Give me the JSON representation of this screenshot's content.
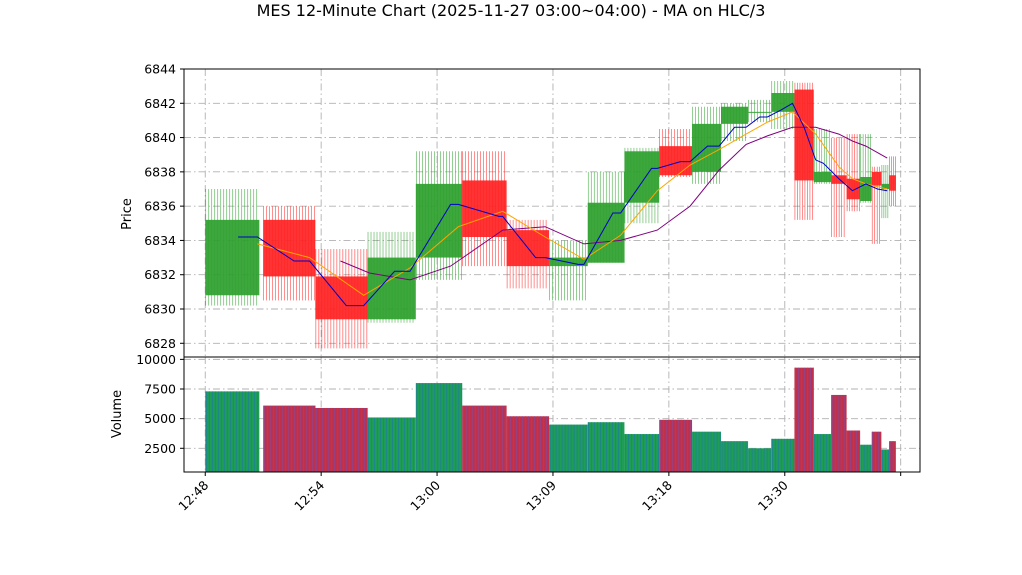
{
  "chart_data": {
    "type": "candlestick",
    "title": "MES 12-Minute Chart (2025-11-27 03:00~04:00) - MA on HLC/3",
    "price_panel": {
      "ylabel": "Price",
      "ylim": [
        6827.2,
        6844
      ],
      "yticks": [
        "6828",
        "6830",
        "6832",
        "6834",
        "6836",
        "6838",
        "6840",
        "6842",
        "6844"
      ]
    },
    "volume_panel": {
      "ylabel": "Volume",
      "ylim": [
        500,
        10200
      ],
      "yticks": [
        "2500",
        "5000",
        "7500",
        "10000"
      ]
    },
    "xticks": [
      "12:48",
      "12:54",
      "13:00",
      "13:09",
      "13:18",
      "13:30"
    ],
    "grid": true,
    "colors": {
      "up": "#2ca02c",
      "down": "#ff2222",
      "ma_fast": "#0000cc",
      "ma_mid": "#ffa500",
      "ma_slow": "#800080"
    },
    "bars": [
      {
        "t": 0.0,
        "w": 2.8,
        "open": 6830.8,
        "high": 6837.0,
        "low": 6830.2,
        "close": 6835.2,
        "volume": 7300
      },
      {
        "t": 3.0,
        "w": 2.7,
        "open": 6835.2,
        "high": 6836.0,
        "low": 6830.5,
        "close": 6831.9,
        "volume": 6100
      },
      {
        "t": 5.7,
        "w": 2.7,
        "open": 6831.9,
        "high": 6833.5,
        "low": 6827.7,
        "close": 6829.4,
        "volume": 5900
      },
      {
        "t": 8.4,
        "w": 2.5,
        "open": 6829.4,
        "high": 6834.5,
        "low": 6829.2,
        "close": 6833.0,
        "volume": 5100
      },
      {
        "t": 10.9,
        "w": 2.4,
        "open": 6833.0,
        "high": 6839.2,
        "low": 6831.7,
        "close": 6837.3,
        "volume": 8000
      },
      {
        "t": 13.3,
        "w": 2.3,
        "open": 6837.5,
        "high": 6839.2,
        "low": 6832.5,
        "close": 6834.2,
        "volume": 6100
      },
      {
        "t": 15.6,
        "w": 2.2,
        "open": 6834.6,
        "high": 6835.2,
        "low": 6831.2,
        "close": 6832.5,
        "volume": 5200
      },
      {
        "t": 17.8,
        "w": 2.0,
        "open": 6832.5,
        "high": 6834.0,
        "low": 6830.5,
        "close": 6833.0,
        "volume": 4500
      },
      {
        "t": 19.8,
        "w": 1.9,
        "open": 6832.7,
        "high": 6838.0,
        "low": 6832.7,
        "close": 6836.2,
        "volume": 4700
      },
      {
        "t": 21.7,
        "w": 1.8,
        "open": 6836.2,
        "high": 6839.4,
        "low": 6835.0,
        "close": 6839.2,
        "volume": 3700
      },
      {
        "t": 23.5,
        "w": 1.7,
        "open": 6839.5,
        "high": 6840.5,
        "low": 6837.7,
        "close": 6837.8,
        "volume": 4900
      },
      {
        "t": 25.2,
        "w": 1.5,
        "open": 6838.0,
        "high": 6841.8,
        "low": 6837.3,
        "close": 6840.8,
        "volume": 3900
      },
      {
        "t": 26.7,
        "w": 1.4,
        "open": 6840.8,
        "high": 6842.0,
        "low": 6839.8,
        "close": 6841.8,
        "volume": 3100
      },
      {
        "t": 28.1,
        "w": 1.2,
        "open": 6841.5,
        "high": 6842.2,
        "low": 6840.9,
        "close": 6841.5,
        "volume": 2500
      },
      {
        "t": 29.3,
        "w": 1.2,
        "open": 6841.5,
        "high": 6843.3,
        "low": 6840.5,
        "close": 6842.6,
        "volume": 3300
      },
      {
        "t": 30.5,
        "w": 1.0,
        "open": 6842.8,
        "high": 6843.2,
        "low": 6835.2,
        "close": 6837.5,
        "volume": 9300
      },
      {
        "t": 31.5,
        "w": 0.9,
        "open": 6837.4,
        "high": 6840.5,
        "low": 6837.3,
        "close": 6838.0,
        "volume": 3700
      },
      {
        "t": 32.4,
        "w": 0.8,
        "open": 6837.8,
        "high": 6840.0,
        "low": 6834.2,
        "close": 6837.3,
        "volume": 7000
      },
      {
        "t": 33.2,
        "w": 0.7,
        "open": 6837.6,
        "high": 6840.2,
        "low": 6835.7,
        "close": 6836.4,
        "volume": 4000
      },
      {
        "t": 33.9,
        "w": 0.6,
        "open": 6836.3,
        "high": 6840.2,
        "low": 6836.2,
        "close": 6837.7,
        "volume": 2800
      },
      {
        "t": 34.5,
        "w": 0.5,
        "open": 6838.0,
        "high": 6838.3,
        "low": 6833.8,
        "close": 6837.2,
        "volume": 3900
      },
      {
        "t": 35.0,
        "w": 0.4,
        "open": 6837.0,
        "high": 6838.4,
        "low": 6835.3,
        "close": 6837.3,
        "volume": 2400
      },
      {
        "t": 35.4,
        "w": 0.35,
        "open": 6837.8,
        "high": 6838.9,
        "low": 6836.0,
        "close": 6836.9,
        "volume": 3100
      }
    ],
    "ma_fast": [
      [
        1.7,
        6834.2
      ],
      [
        2.7,
        6834.2
      ],
      [
        4.6,
        6832.8
      ],
      [
        5.4,
        6832.8
      ],
      [
        7.3,
        6830.2
      ],
      [
        8.2,
        6830.2
      ],
      [
        9.8,
        6832.2
      ],
      [
        10.6,
        6832.2
      ],
      [
        12.7,
        6836.1
      ],
      [
        13.1,
        6836.1
      ],
      [
        15.2,
        6835.4
      ],
      [
        15.4,
        6835.4
      ],
      [
        17.1,
        6833.0
      ],
      [
        17.6,
        6833.0
      ],
      [
        19.3,
        6832.6
      ],
      [
        19.6,
        6832.6
      ],
      [
        21.1,
        6835.6
      ],
      [
        21.5,
        6835.6
      ],
      [
        23.1,
        6838.2
      ],
      [
        23.4,
        6838.2
      ],
      [
        24.6,
        6838.6
      ],
      [
        25.1,
        6838.6
      ],
      [
        26.0,
        6839.5
      ],
      [
        26.6,
        6839.5
      ],
      [
        27.4,
        6840.6
      ],
      [
        28.0,
        6840.6
      ],
      [
        28.7,
        6841.2
      ],
      [
        29.1,
        6841.2
      ],
      [
        29.8,
        6841.6
      ],
      [
        30.4,
        6842.0
      ],
      [
        31.0,
        6840.6
      ],
      [
        31.6,
        6838.7
      ],
      [
        32.0,
        6838.5
      ],
      [
        32.8,
        6837.6
      ],
      [
        33.5,
        6836.9
      ],
      [
        34.2,
        6837.3
      ],
      [
        34.8,
        6837.0
      ],
      [
        35.3,
        6836.9
      ]
    ],
    "ma_mid": [
      [
        2.7,
        6833.8
      ],
      [
        5.4,
        6833.0
      ],
      [
        8.2,
        6830.8
      ],
      [
        10.6,
        6832.4
      ],
      [
        13.1,
        6834.8
      ],
      [
        15.4,
        6835.7
      ],
      [
        17.6,
        6834.2
      ],
      [
        19.6,
        6832.9
      ],
      [
        21.5,
        6834.3
      ],
      [
        23.4,
        6836.9
      ],
      [
        25.1,
        6838.4
      ],
      [
        26.6,
        6839.3
      ],
      [
        28.0,
        6840.2
      ],
      [
        29.1,
        6840.9
      ],
      [
        30.4,
        6841.5
      ],
      [
        31.6,
        6840.2
      ],
      [
        32.8,
        6838.3
      ],
      [
        33.5,
        6837.6
      ],
      [
        34.2,
        6837.3
      ],
      [
        35.3,
        6837.0
      ]
    ],
    "ma_slow": [
      [
        7.0,
        6832.8
      ],
      [
        8.5,
        6832.1
      ],
      [
        10.6,
        6831.7
      ],
      [
        12.7,
        6832.5
      ],
      [
        15.4,
        6834.6
      ],
      [
        17.6,
        6834.8
      ],
      [
        19.6,
        6833.8
      ],
      [
        21.5,
        6834.0
      ],
      [
        23.4,
        6834.6
      ],
      [
        25.1,
        6836.0
      ],
      [
        26.6,
        6838.1
      ],
      [
        28.0,
        6839.6
      ],
      [
        29.1,
        6840.1
      ],
      [
        30.4,
        6840.6
      ],
      [
        31.6,
        6840.6
      ],
      [
        32.8,
        6840.2
      ],
      [
        33.5,
        6839.8
      ],
      [
        34.2,
        6839.5
      ],
      [
        35.3,
        6838.8
      ]
    ]
  }
}
